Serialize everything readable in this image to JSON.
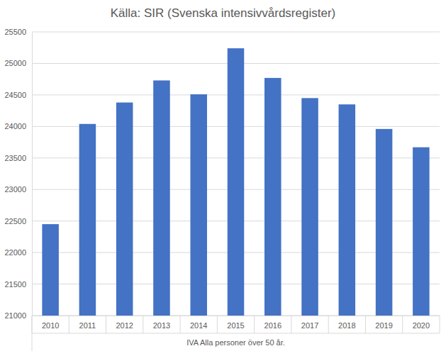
{
  "chart_data": {
    "type": "bar",
    "title": "Källa: SIR (Svenska intensivvårdsregister)",
    "xlabel": "IVA Alla personer över 50 år.",
    "categories": [
      "2010",
      "2011",
      "2012",
      "2013",
      "2014",
      "2015",
      "2016",
      "2017",
      "2018",
      "2019",
      "2020"
    ],
    "values": [
      22450,
      24040,
      24380,
      24730,
      24510,
      25240,
      24770,
      24450,
      24350,
      23960,
      23670
    ],
    "color": "#4472c4",
    "ylim": [
      21000,
      25500
    ],
    "yticks": [
      21000,
      21500,
      22000,
      22500,
      23000,
      23500,
      24000,
      24500,
      25000,
      25500
    ],
    "grid": true
  }
}
